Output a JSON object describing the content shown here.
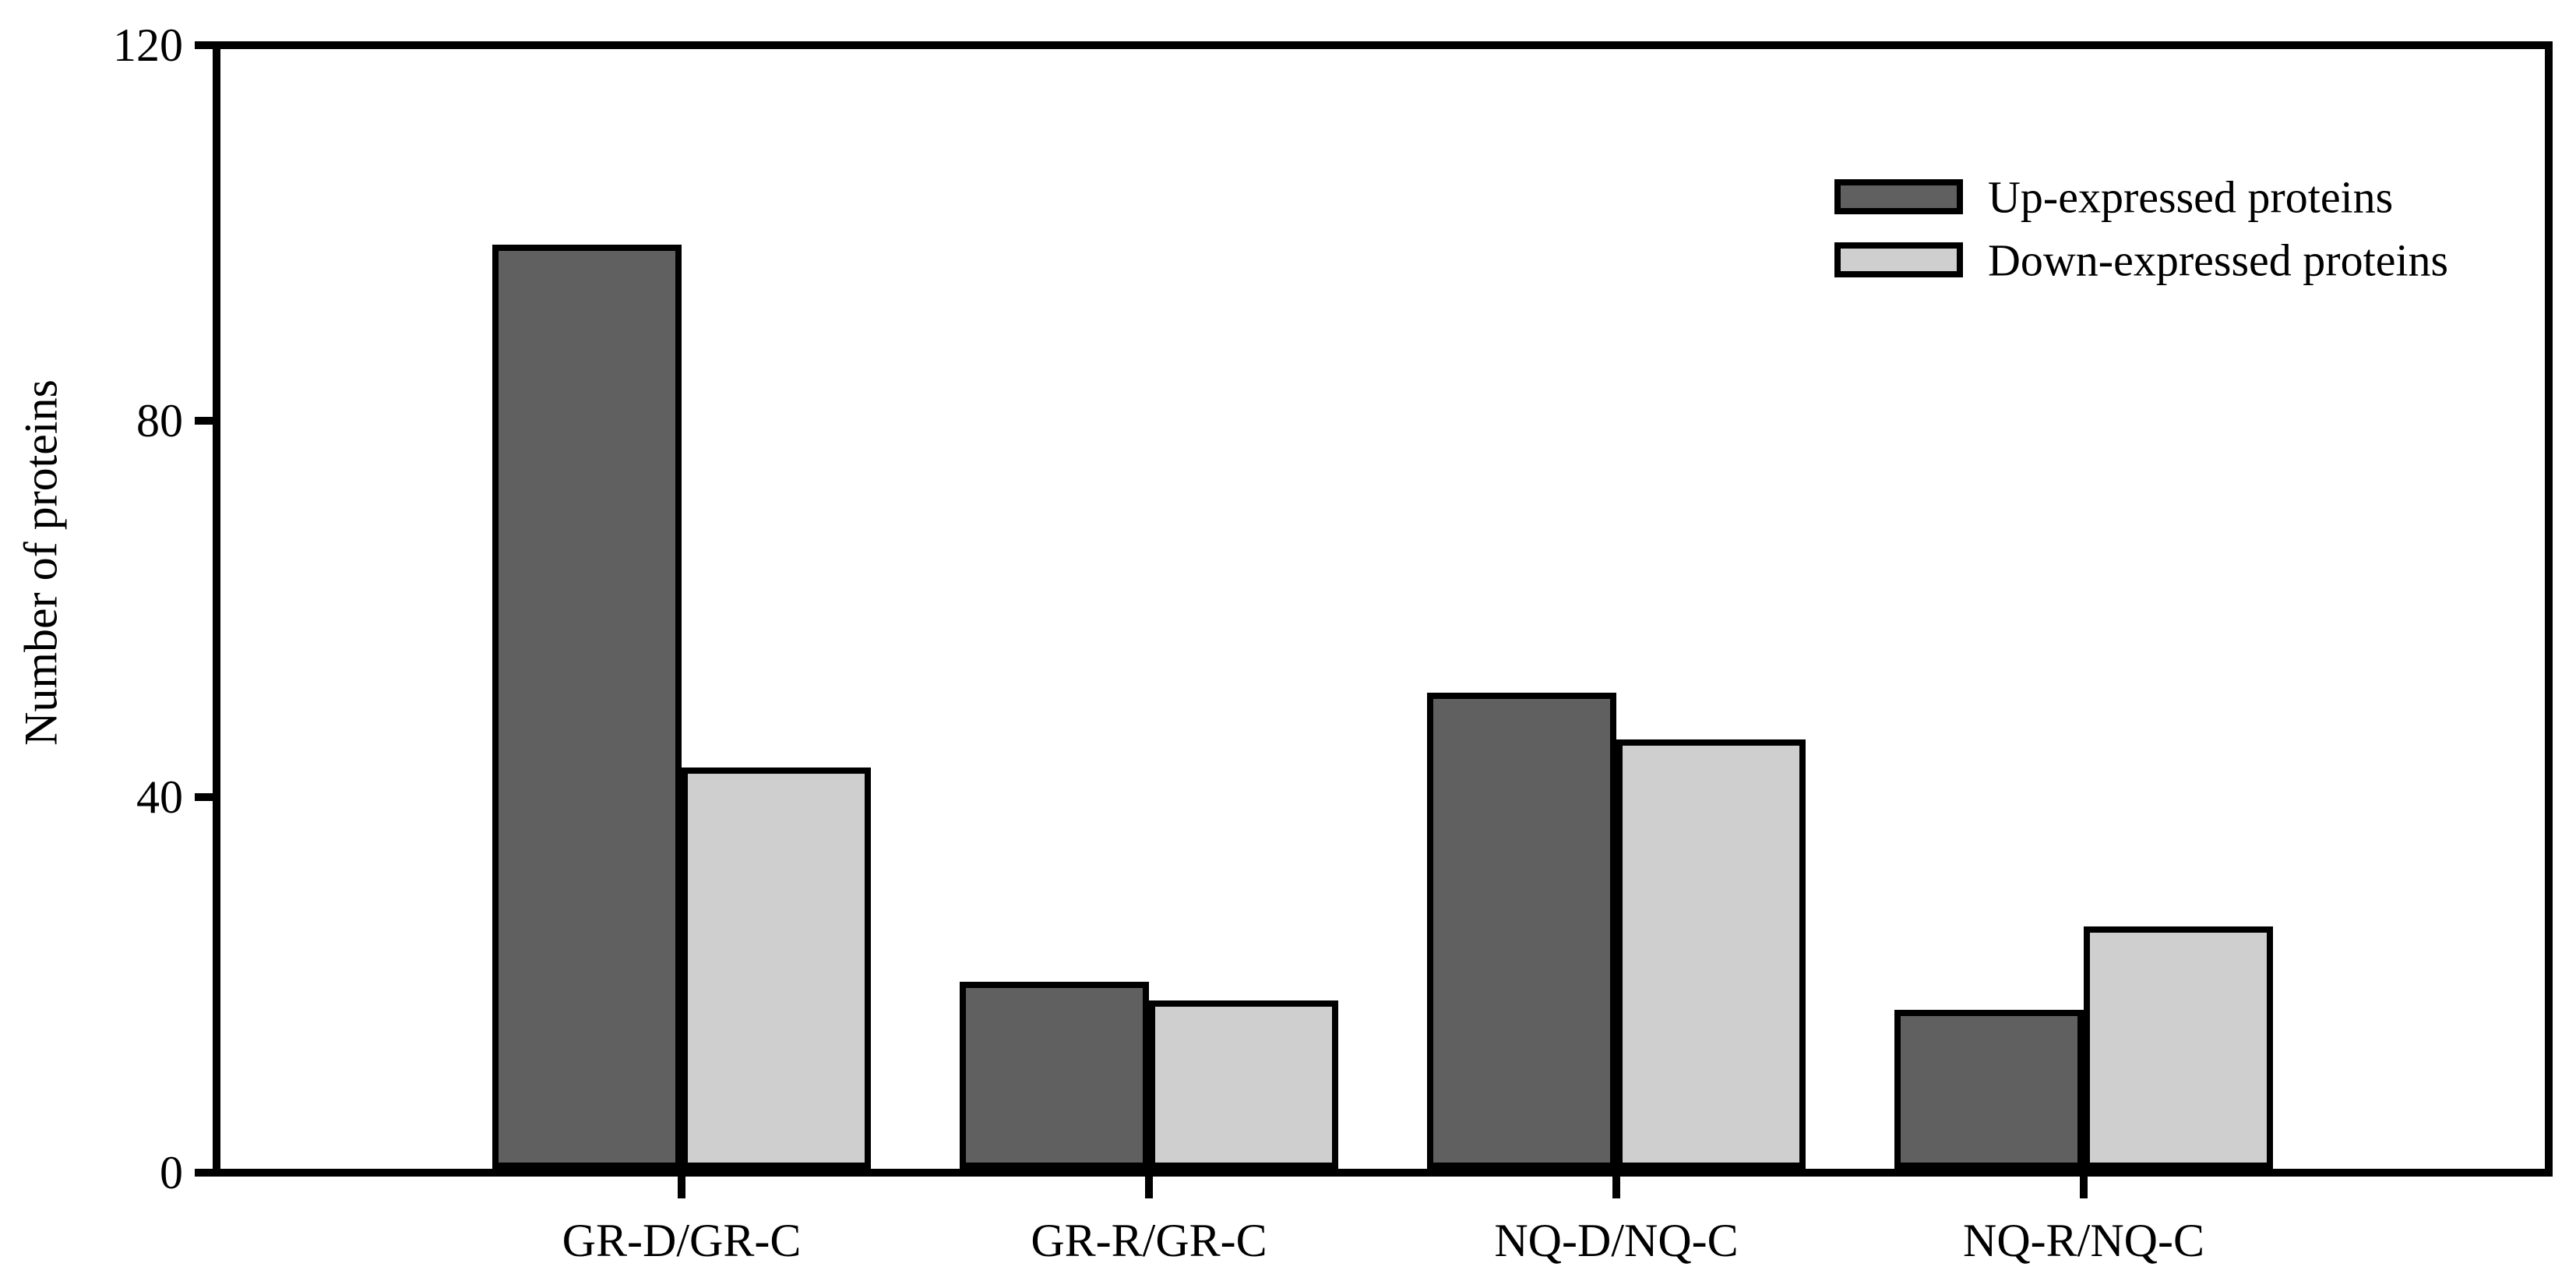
{
  "chart_data": {
    "type": "bar",
    "title": "",
    "xlabel": "",
    "ylabel": "Number of proteins",
    "ylim": [
      0,
      120
    ],
    "yticks": [
      "0",
      "40",
      "80",
      "120"
    ],
    "grid": false,
    "legend_position": "top-right-inside",
    "categories": [
      "GR-D/GR-C",
      "GR-R/GR-C",
      "NQ-D/NQ-C",
      "NQ-R/NQ-C"
    ],
    "series": [
      {
        "name": "Up-expressed proteins",
        "color": "#606060",
        "values": [
          99,
          20,
          51,
          17
        ]
      },
      {
        "name": "Down-expressed proteins",
        "color": "#cfcfcf",
        "values": [
          43,
          18,
          46,
          26
        ]
      }
    ],
    "ink_color": "#000000",
    "background_color": "#ffffff"
  }
}
